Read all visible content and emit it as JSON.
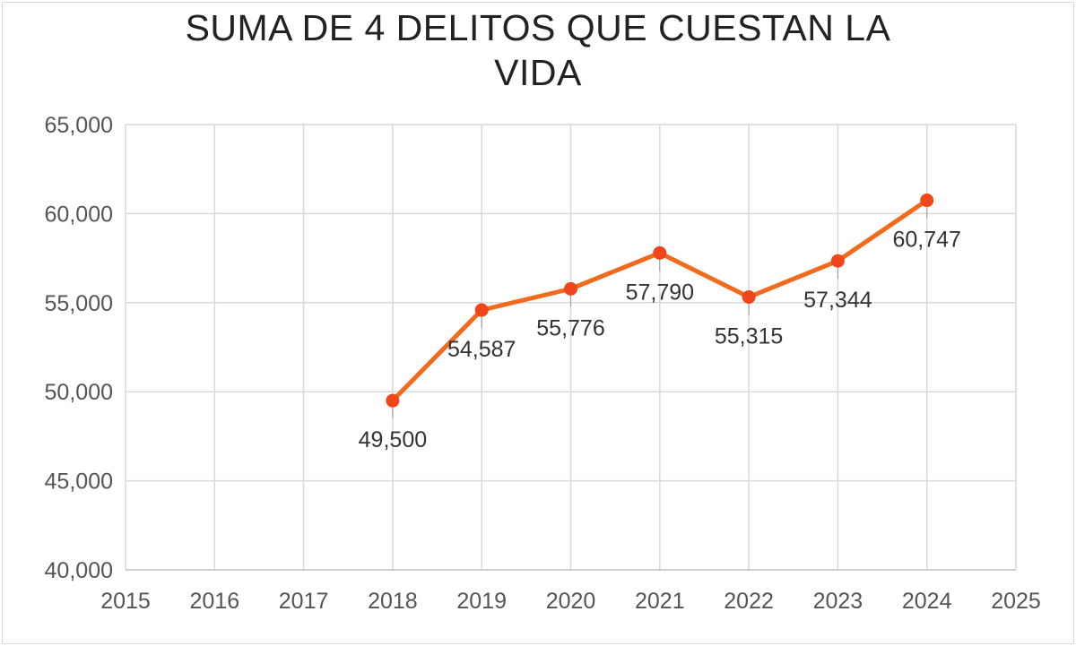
{
  "chart_data": {
    "type": "line",
    "title": "SUMA DE 4 DELITOS QUE CUESTAN LA VIDA",
    "title_lines": [
      "SUMA DE 4 DELITOS QUE CUESTAN LA",
      "VIDA"
    ],
    "xlabel": "",
    "ylabel": "",
    "xlim": [
      2015,
      2025
    ],
    "ylim": [
      40000,
      65000
    ],
    "x_ticks": [
      "2015",
      "2016",
      "2017",
      "2018",
      "2019",
      "2020",
      "2021",
      "2022",
      "2023",
      "2024",
      "2025"
    ],
    "y_ticks": [
      "40,000",
      "45,000",
      "50,000",
      "55,000",
      "60,000",
      "65,000"
    ],
    "grid": true,
    "legend": "none",
    "series": [
      {
        "color": "#f26a1b",
        "marker_color": "#f0461a",
        "x": [
          2018,
          2019,
          2020,
          2021,
          2022,
          2023,
          2024
        ],
        "values": [
          49500,
          54587,
          55776,
          57790,
          55315,
          57344,
          60747
        ],
        "labels": [
          "49,500",
          "54,587",
          "55,776",
          "57,790",
          "55,315",
          "57,344",
          "60,747"
        ]
      }
    ]
  }
}
